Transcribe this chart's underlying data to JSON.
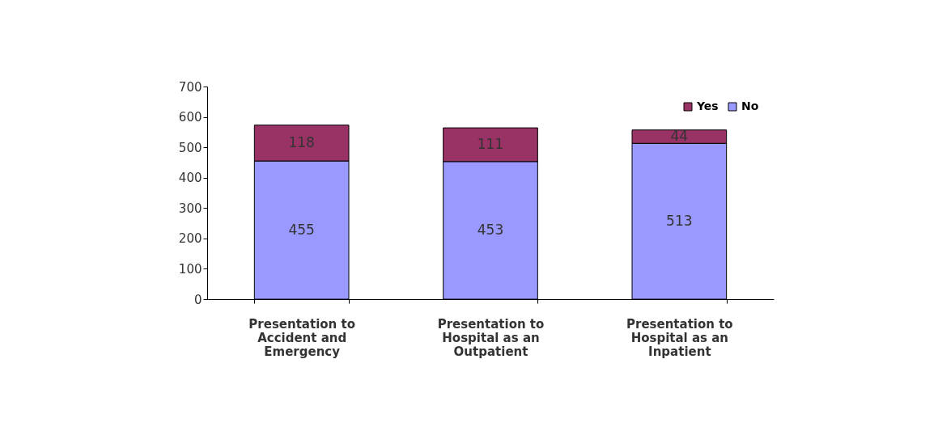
{
  "chart_data": {
    "type": "bar",
    "stacked": true,
    "categories": [
      "Presentation to Accident and Emergency",
      "Presentation to Hospital as an Outpatient",
      "Presentation to Hospital as an Inpatient"
    ],
    "series": [
      {
        "name": "No",
        "color": "#9999ff",
        "values": [
          455,
          453,
          513
        ]
      },
      {
        "name": "Yes",
        "color": "#993366",
        "values": [
          118,
          111,
          44
        ]
      }
    ],
    "ylim": [
      0,
      700
    ],
    "yticks": [
      0,
      100,
      200,
      300,
      400,
      500,
      600,
      700
    ],
    "data_labels": true,
    "legend": "top right",
    "grid": false
  }
}
